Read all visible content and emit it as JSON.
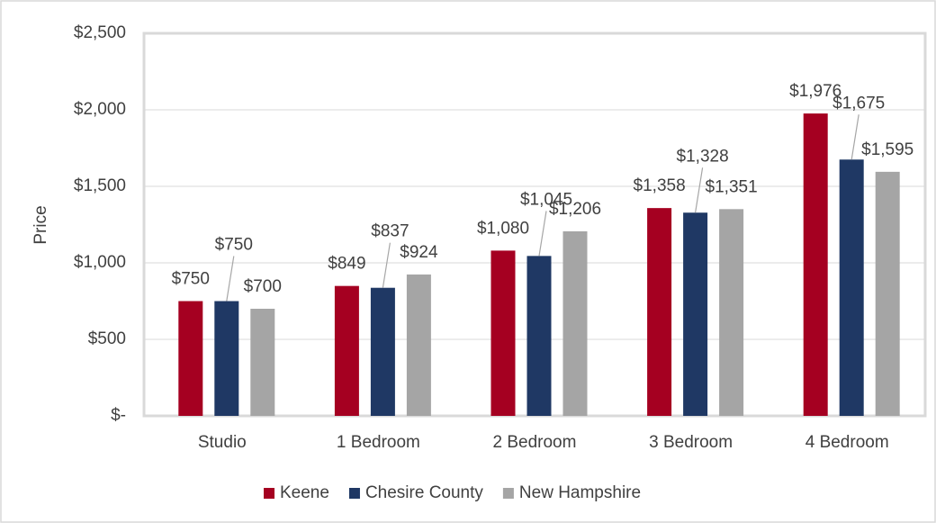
{
  "chart_data": {
    "type": "bar",
    "y_label": "Price",
    "categories": [
      "Studio",
      "1 Bedroom",
      "2 Bedroom",
      "3 Bedroom",
      "4 Bedroom"
    ],
    "series": [
      {
        "name": "Keene",
        "color": "#a50021",
        "values": [
          750,
          849,
          1080,
          1358,
          1976
        ],
        "value_labels": [
          "$750",
          "$849",
          "$1,080",
          "$1,358",
          "$1,976"
        ]
      },
      {
        "name": "Chesire County",
        "color": "#1f3864",
        "values": [
          750,
          837,
          1045,
          1328,
          1675
        ],
        "value_labels": [
          "$750",
          "$837",
          "$1,045",
          "$1,328",
          "$1,675"
        ]
      },
      {
        "name": "New Hampshire",
        "color": "#a5a5a5",
        "values": [
          700,
          924,
          1206,
          1351,
          1595
        ],
        "value_labels": [
          "$700",
          "$924",
          "$1,206",
          "$1,351",
          "$1,595"
        ]
      }
    ],
    "ylim": [
      0,
      2500
    ],
    "yticks": [
      {
        "value": 0,
        "label": "$-"
      },
      {
        "value": 500,
        "label": "$500"
      },
      {
        "value": 1000,
        "label": "$1,000"
      },
      {
        "value": 1500,
        "label": "$1,500"
      },
      {
        "value": 2000,
        "label": "$2,000"
      },
      {
        "value": 2500,
        "label": "$2,500"
      }
    ],
    "grid": true,
    "legend": "bottom"
  }
}
